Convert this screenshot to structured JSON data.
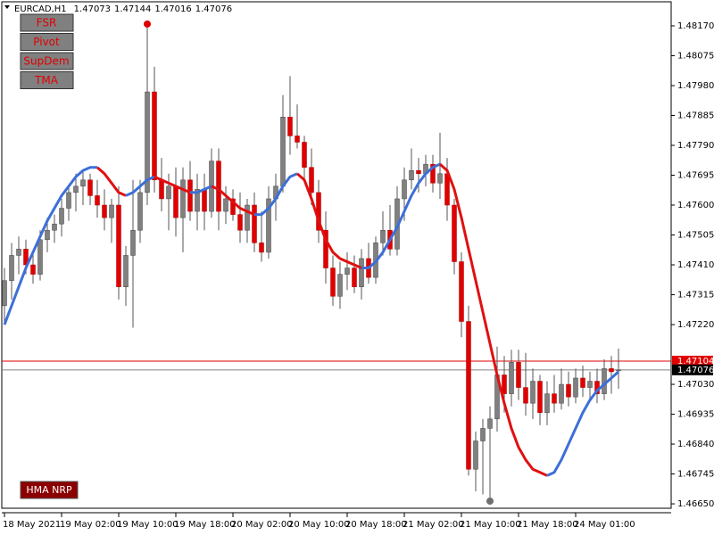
{
  "chart_data": {
    "type": "candlestick",
    "symbol": "EURCAD,H1",
    "buttons": [
      "FSR",
      "Pivot",
      "SupDem",
      "TMA"
    ],
    "indicator_button": "HMA NRP",
    "categories": [
      "18 May 2021",
      null,
      null,
      null,
      null,
      null,
      null,
      null,
      "19 May 02:00",
      null,
      null,
      null,
      null,
      null,
      null,
      null,
      "19 May 10:00",
      null,
      null,
      null,
      null,
      null,
      null,
      null,
      "19 May 18:00",
      null,
      null,
      null,
      null,
      null,
      null,
      null,
      "20 May 02:00",
      null,
      null,
      null,
      null,
      null,
      null,
      null,
      "20 May 10:00",
      null,
      null,
      null,
      null,
      null,
      null,
      null,
      "20 May 18:00",
      null,
      null,
      null,
      null,
      null,
      null,
      null,
      "21 May 02:00",
      null,
      null,
      null,
      null,
      null,
      null,
      null,
      "21 May 10:00",
      null,
      null,
      null,
      null,
      null,
      null,
      null,
      "21 May 18:00",
      null,
      null,
      null,
      null,
      null,
      null,
      null,
      "24 May 01:00",
      null,
      null,
      null,
      null,
      null,
      null
    ],
    "open": [
      1.4728,
      1.4736,
      1.4744,
      1.4746,
      1.4741,
      1.4738,
      1.4749,
      1.4752,
      1.4754,
      1.4759,
      1.4764,
      1.4766,
      1.4768,
      1.4763,
      1.476,
      1.4756,
      1.476,
      1.4734,
      1.4744,
      1.4752,
      1.4764,
      1.4796,
      1.4768,
      1.4762,
      1.4766,
      1.4756,
      1.4768,
      1.4758,
      1.4765,
      1.4758,
      1.4774,
      1.4758,
      1.4762,
      1.4757,
      1.4752,
      1.476,
      1.4748,
      1.4745,
      1.4762,
      1.4766,
      1.4788,
      1.4782,
      1.478,
      1.4772,
      1.4764,
      1.4752,
      1.474,
      1.4731,
      1.4738,
      1.474,
      1.4734,
      1.4743,
      1.4737,
      1.4748,
      1.4752,
      1.4746,
      1.4762,
      1.4768,
      1.4771,
      1.477,
      1.4773,
      1.4767,
      1.477,
      1.476,
      1.4742,
      1.4723,
      1.4676,
      1.4685,
      1.4689,
      1.4692,
      1.4706,
      1.47,
      1.471,
      1.4702,
      1.4697,
      1.4704,
      1.4694,
      1.47,
      1.4697,
      1.4703,
      1.4699,
      1.4705,
      1.4702,
      1.4704,
      1.47,
      1.4708,
      1.47073
    ],
    "high": [
      1.474,
      1.4748,
      1.475,
      1.4749,
      1.4745,
      1.4752,
      1.4756,
      1.4757,
      1.4762,
      1.4766,
      1.477,
      1.4771,
      1.477,
      1.4768,
      1.4765,
      1.4762,
      1.4766,
      1.4747,
      1.4768,
      1.4768,
      1.4817,
      1.4804,
      1.4775,
      1.477,
      1.4772,
      1.4772,
      1.4774,
      1.477,
      1.477,
      1.4778,
      1.4778,
      1.4766,
      1.4765,
      1.4764,
      1.4762,
      1.4764,
      1.4758,
      1.4766,
      1.477,
      1.4795,
      1.4801,
      1.4792,
      1.4782,
      1.4778,
      1.4768,
      1.4758,
      1.4744,
      1.4742,
      1.4745,
      1.4744,
      1.4746,
      1.4748,
      1.475,
      1.4758,
      1.476,
      1.4766,
      1.4772,
      1.4778,
      1.4775,
      1.4776,
      1.4776,
      1.4783,
      1.4775,
      1.4762,
      1.4745,
      1.4728,
      1.4688,
      1.4692,
      1.4696,
      1.4715,
      1.4712,
      1.4714,
      1.4714,
      1.4713,
      1.4708,
      1.4706,
      1.4704,
      1.4706,
      1.4708,
      1.4707,
      1.4708,
      1.4709,
      1.4707,
      1.4708,
      1.4711,
      1.4712,
      1.47144
    ],
    "low": [
      1.4722,
      1.473,
      1.4738,
      1.4738,
      1.4735,
      1.4736,
      1.4745,
      1.4748,
      1.475,
      1.4755,
      1.4758,
      1.476,
      1.476,
      1.4756,
      1.4752,
      1.4748,
      1.473,
      1.4728,
      1.4721,
      1.4748,
      1.476,
      1.4764,
      1.4758,
      1.4752,
      1.475,
      1.4745,
      1.4755,
      1.4752,
      1.4752,
      1.4756,
      1.4752,
      1.4754,
      1.4755,
      1.4748,
      1.4748,
      1.4745,
      1.4742,
      1.4743,
      1.4755,
      1.4764,
      1.4776,
      1.4778,
      1.4768,
      1.476,
      1.4748,
      1.4735,
      1.4728,
      1.4727,
      1.4733,
      1.4732,
      1.473,
      1.4735,
      1.4735,
      1.4744,
      1.4744,
      1.4744,
      1.4755,
      1.4765,
      1.4764,
      1.4766,
      1.4764,
      1.4762,
      1.4755,
      1.4738,
      1.4718,
      1.4674,
      1.4669,
      1.4668,
      1.4667,
      1.4688,
      1.4694,
      1.4696,
      1.4698,
      1.4693,
      1.4692,
      1.469,
      1.469,
      1.4694,
      1.4695,
      1.4696,
      1.4697,
      1.4699,
      1.4698,
      1.4697,
      1.4698,
      1.47,
      1.47016
    ],
    "close": [
      1.4736,
      1.4744,
      1.4746,
      1.4741,
      1.4738,
      1.4749,
      1.4752,
      1.4754,
      1.4759,
      1.4764,
      1.4766,
      1.4768,
      1.4763,
      1.476,
      1.4756,
      1.476,
      1.4734,
      1.4744,
      1.4752,
      1.4764,
      1.4796,
      1.4768,
      1.4762,
      1.4766,
      1.4756,
      1.4768,
      1.4758,
      1.4765,
      1.4758,
      1.4774,
      1.4758,
      1.4762,
      1.4757,
      1.4752,
      1.476,
      1.4748,
      1.4745,
      1.4762,
      1.4766,
      1.4788,
      1.4782,
      1.478,
      1.4772,
      1.4764,
      1.4752,
      1.474,
      1.4731,
      1.4738,
      1.474,
      1.4734,
      1.4743,
      1.4737,
      1.4748,
      1.4752,
      1.4746,
      1.4762,
      1.4768,
      1.4771,
      1.477,
      1.4773,
      1.4767,
      1.477,
      1.476,
      1.4742,
      1.4723,
      1.4676,
      1.4685,
      1.4689,
      1.4692,
      1.4706,
      1.47,
      1.471,
      1.4702,
      1.4697,
      1.4704,
      1.4694,
      1.47,
      1.4697,
      1.4703,
      1.4699,
      1.4705,
      1.4702,
      1.4704,
      1.47,
      1.4708,
      1.4707,
      1.47076
    ],
    "hma": [
      1.4722,
      1.4728,
      1.4734,
      1.474,
      1.4745,
      1.475,
      1.4755,
      1.4759,
      1.4763,
      1.4766,
      1.4769,
      1.4771,
      1.4772,
      1.4772,
      1.477,
      1.4767,
      1.4764,
      1.4763,
      1.4764,
      1.4766,
      1.4768,
      1.4769,
      1.4768,
      1.4767,
      1.4766,
      1.4765,
      1.4764,
      1.4764,
      1.4765,
      1.4766,
      1.4765,
      1.4763,
      1.4761,
      1.4759,
      1.4758,
      1.4757,
      1.4757,
      1.4759,
      1.4762,
      1.4766,
      1.4769,
      1.477,
      1.4768,
      1.4762,
      1.4755,
      1.4749,
      1.4745,
      1.4743,
      1.4742,
      1.4741,
      1.474,
      1.474,
      1.4742,
      1.4745,
      1.4749,
      1.4753,
      1.4758,
      1.4763,
      1.4767,
      1.477,
      1.4772,
      1.4773,
      1.4771,
      1.4765,
      1.4756,
      1.4746,
      1.4736,
      1.4726,
      1.4716,
      1.4706,
      1.4697,
      1.4689,
      1.4683,
      1.4679,
      1.4676,
      1.4675,
      1.4674,
      1.4675,
      1.4679,
      1.4684,
      1.4689,
      1.4694,
      1.4698,
      1.4701,
      1.4703,
      1.4705,
      1.4707
    ],
    "bull_color": "#808080",
    "bear_color": "#e00000",
    "rise_color": "#3c6fd8",
    "fall_color": "#e01010",
    "ask": 1.47104,
    "ylim": [
      1.46636,
      1.48238
    ],
    "yticks": [
      {
        "value": 1.4817,
        "label": "1.48170"
      },
      1.48075,
      {
        "value": 1.4798,
        "label": "1.47980"
      },
      1.47885,
      {
        "value": 1.4779,
        "label": "1.47790"
      },
      1.47695,
      {
        "value": 1.476,
        "label": "1.47600"
      },
      1.47505,
      {
        "value": 1.4741,
        "label": "1.47410"
      },
      1.47315,
      {
        "value": 1.4722,
        "label": "1.47220"
      },
      {
        "value": 1.4703,
        "label": "1.47030"
      },
      1.46935,
      {
        "value": 1.4684,
        "label": "1.46840"
      },
      1.46745,
      {
        "value": 1.4665,
        "label": "1.46650"
      }
    ]
  }
}
